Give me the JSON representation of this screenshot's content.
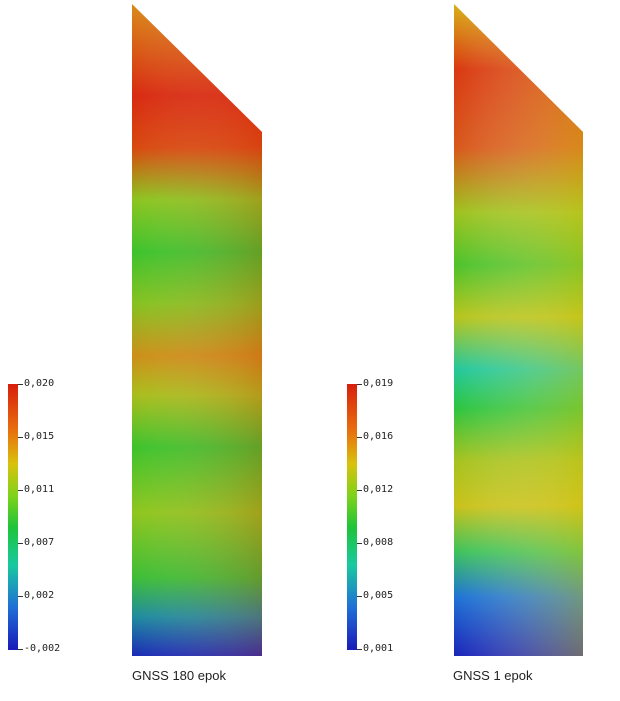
{
  "panels": [
    {
      "caption": "GNSS 180 epok",
      "legend_ticks": [
        "0,020",
        "0,015",
        "0,011",
        "0,007",
        "0,002",
        "-0,002"
      ],
      "colormap": [
        "#d81e0c",
        "#e8720e",
        "#d9c20c",
        "#7fd21a",
        "#1ec43a",
        "#19c9a0",
        "#1f6fd6",
        "#1a1ab8"
      ]
    },
    {
      "caption": "GNSS 1 epok",
      "legend_ticks": [
        "0,019",
        "0,016",
        "0,012",
        "0,008",
        "0,005",
        "0,001"
      ],
      "colormap": [
        "#d81e0c",
        "#e8720e",
        "#d9c20c",
        "#7fd21a",
        "#1ec43a",
        "#19c9a0",
        "#1f6fd6",
        "#1a1ab8"
      ]
    }
  ]
}
